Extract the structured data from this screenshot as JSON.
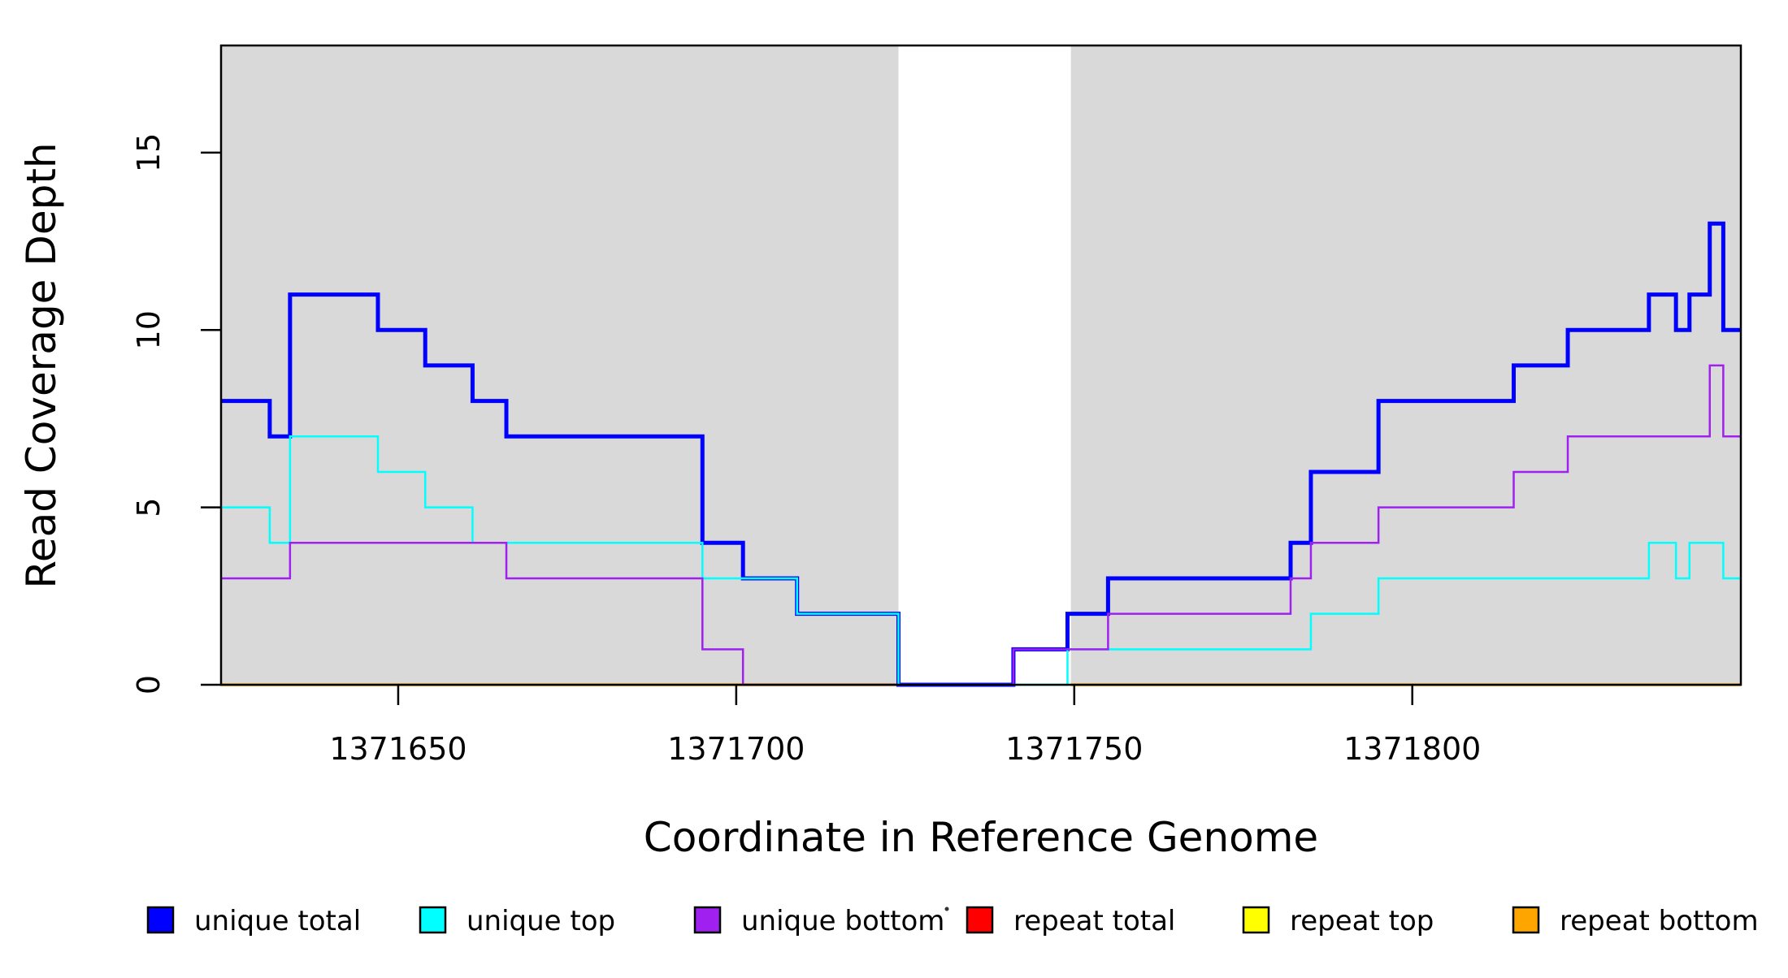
{
  "figure": {
    "background": "#FFFFFF",
    "shade_color": "#D9D9D9",
    "axis_color": "#000000"
  },
  "chart_data": {
    "type": "line",
    "subtype": "step",
    "xlabel": "Coordinate in Reference Genome",
    "ylabel": "Read Coverage Depth",
    "x_ticks": [
      1371650,
      1371700,
      1371750,
      1371800
    ],
    "x_tick_labels": [
      "1371650",
      "1371700",
      "1371750",
      "1371800"
    ],
    "y_ticks": [
      0,
      5,
      10,
      15
    ],
    "y_tick_labels": [
      "0",
      "5",
      "10",
      "15"
    ],
    "x_range": [
      1371623.8,
      1371848.6
    ],
    "y_range": [
      0,
      18.02
    ],
    "grid": false,
    "legend_position": "bottom",
    "shaded_regions": [
      {
        "name": "repeat-region-left",
        "x0": 1371623.8,
        "x1": 1371724.0
      },
      {
        "name": "repeat-region-right",
        "x0": 1371749.5,
        "x1": 1371848.6
      }
    ],
    "series": [
      {
        "id": "repeat-total",
        "name": "repeat total",
        "color": "#FF0000",
        "width": 2.5,
        "segments": [
          {
            "points": [
              [
                1371623.8,
                0
              ]
            ],
            "end": 1371724.0
          },
          {
            "points": [
              [
                1371749.5,
                0
              ]
            ],
            "end": 1371848.6
          }
        ]
      },
      {
        "id": "repeat-top",
        "name": "repeat top",
        "color": "#FFFF00",
        "width": 2.5,
        "segments": [
          {
            "points": [
              [
                1371623.8,
                0
              ]
            ],
            "end": 1371724.0
          },
          {
            "points": [
              [
                1371749.5,
                0
              ]
            ],
            "end": 1371848.6
          }
        ]
      },
      {
        "id": "repeat-bottom",
        "name": "repeat bottom",
        "color": "#FFA500",
        "width": 3.5,
        "segments": [
          {
            "points": [
              [
                1371623.8,
                0
              ]
            ],
            "end": 1371724.0
          },
          {
            "points": [
              [
                1371749.5,
                0
              ]
            ],
            "end": 1371848.6
          }
        ]
      },
      {
        "id": "unique-total",
        "name": "unique total",
        "color": "#0000FF",
        "width": 5,
        "segments": [
          {
            "points": [
              [
                1371623.8,
                8
              ],
              [
                1371631,
                7
              ],
              [
                1371634,
                11
              ],
              [
                1371647,
                10
              ],
              [
                1371654,
                9
              ],
              [
                1371661,
                8
              ],
              [
                1371666,
                7
              ],
              [
                1371695,
                4
              ],
              [
                1371701,
                3
              ],
              [
                1371709,
                2
              ],
              [
                1371724,
                0
              ],
              [
                1371741,
                1
              ],
              [
                1371749,
                2
              ],
              [
                1371755,
                3
              ],
              [
                1371782,
                4
              ],
              [
                1371785,
                6
              ],
              [
                1371795,
                8
              ],
              [
                1371815,
                9
              ],
              [
                1371823,
                10
              ],
              [
                1371835,
                11
              ],
              [
                1371839,
                10
              ],
              [
                1371841,
                11
              ],
              [
                1371844,
                13
              ],
              [
                1371846,
                10
              ]
            ],
            "end": 1371848.6
          }
        ]
      },
      {
        "id": "unique-top",
        "name": "unique top",
        "color": "#00FFFF",
        "width": 2.5,
        "segments": [
          {
            "points": [
              [
                1371623.8,
                5
              ],
              [
                1371631,
                4
              ],
              [
                1371634,
                7
              ],
              [
                1371647,
                6
              ],
              [
                1371654,
                5
              ],
              [
                1371661,
                4
              ],
              [
                1371695,
                3
              ],
              [
                1371709,
                2
              ],
              [
                1371724,
                0
              ],
              [
                1371749,
                1
              ],
              [
                1371785,
                2
              ],
              [
                1371795,
                3
              ],
              [
                1371835,
                4
              ],
              [
                1371839,
                3
              ],
              [
                1371841,
                4
              ],
              [
                1371846,
                3
              ]
            ],
            "end": 1371848.6
          }
        ]
      },
      {
        "id": "unique-bottom",
        "name": "unique bottom",
        "color": "#A020F0",
        "width": 2.5,
        "segments": [
          {
            "points": [
              [
                1371623.8,
                3
              ],
              [
                1371634,
                4
              ],
              [
                1371666,
                3
              ],
              [
                1371695,
                1
              ],
              [
                1371701,
                0
              ],
              [
                1371741,
                1
              ],
              [
                1371755,
                2
              ],
              [
                1371782,
                3
              ],
              [
                1371785,
                4
              ],
              [
                1371795,
                5
              ],
              [
                1371815,
                6
              ],
              [
                1371823,
                7
              ],
              [
                1371844,
                9
              ],
              [
                1371846,
                7
              ]
            ],
            "end": 1371848.6
          }
        ]
      }
    ],
    "legend": [
      {
        "id": "unique-total",
        "label": "unique total",
        "color": "#0000FF"
      },
      {
        "id": "unique-top",
        "label": "unique top",
        "color": "#00FFFF"
      },
      {
        "id": "unique-bottom",
        "label": "unique bottom",
        "color": "#A020F0"
      },
      {
        "id": "repeat-total",
        "label": "repeat total",
        "color": "#FF0000"
      },
      {
        "id": "repeat-top",
        "label": "repeat top",
        "color": "#FFFF00"
      },
      {
        "id": "repeat-bottom",
        "label": "repeat bottom",
        "color": "#FFA500"
      }
    ]
  }
}
